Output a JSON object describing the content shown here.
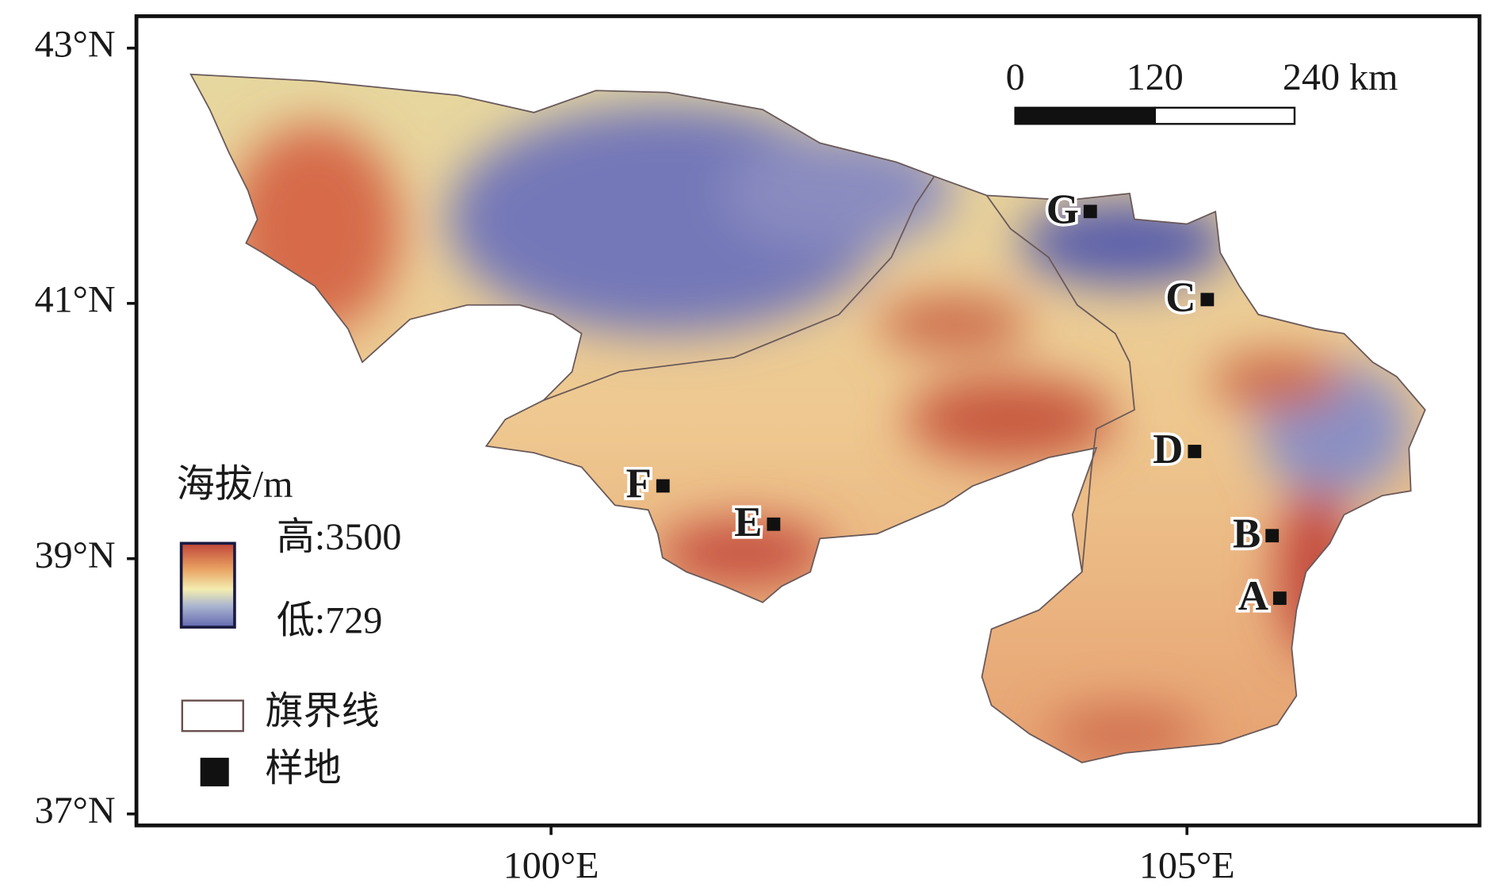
{
  "map": {
    "lon_lim": [
      96.74,
      107.3
    ],
    "lat_lim": [
      36.91,
      43.25
    ],
    "lon_ticks": [
      {
        "value": 100,
        "label": "100°E"
      },
      {
        "value": 105,
        "label": "105°E"
      }
    ],
    "lat_ticks": [
      {
        "value": 43,
        "label": "43°N"
      },
      {
        "value": 41,
        "label": "41°N"
      },
      {
        "value": 39,
        "label": "39°N"
      },
      {
        "value": 37,
        "label": "37°N"
      }
    ],
    "sites": [
      {
        "label": "A",
        "lon": 105.73,
        "lat": 38.69
      },
      {
        "label": "B",
        "lon": 105.67,
        "lat": 39.18
      },
      {
        "label": "C",
        "lon": 105.16,
        "lat": 41.03
      },
      {
        "label": "D",
        "lon": 105.06,
        "lat": 39.84
      },
      {
        "label": "E",
        "lon": 101.75,
        "lat": 39.27
      },
      {
        "label": "F",
        "lon": 100.88,
        "lat": 39.57
      },
      {
        "label": "G",
        "lon": 104.24,
        "lat": 41.72
      }
    ],
    "scale_bar": {
      "ticks": [
        0,
        120,
        {
          "value": 240,
          "label": "240 km"
        }
      ]
    },
    "legend": {
      "title": "海拔/m",
      "high": "高:3500",
      "low": "低:729",
      "boundary": "旗界线",
      "site": "样地"
    }
  }
}
